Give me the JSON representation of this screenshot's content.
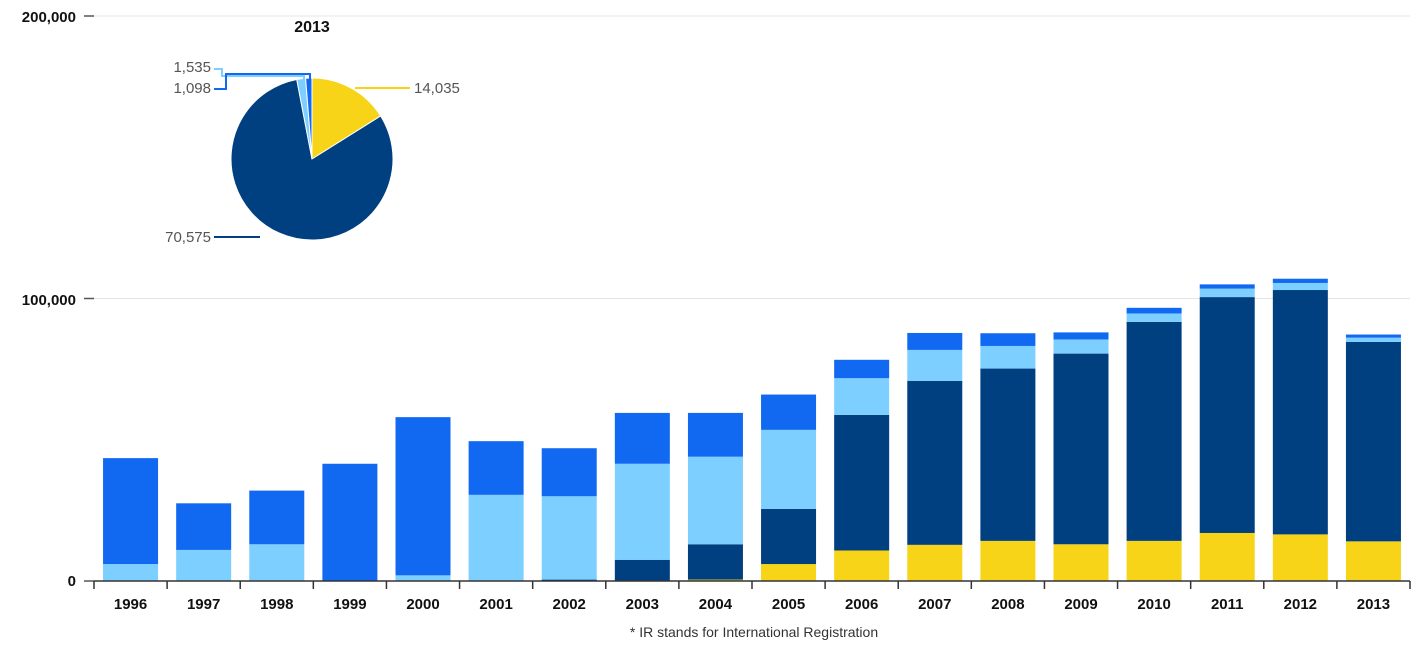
{
  "chart_data": [
    {
      "type": "bar",
      "stacked": true,
      "categories": [
        "1996",
        "1997",
        "1998",
        "1999",
        "2000",
        "2001",
        "2002",
        "2003",
        "2004",
        "2005",
        "2006",
        "2007",
        "2008",
        "2009",
        "2010",
        "2011",
        "2012",
        "2013"
      ],
      "yticks": [
        "0",
        "100,000",
        "200,000"
      ],
      "ylim": [
        0,
        200000
      ],
      "grid": true,
      "series": [
        {
          "color": "#f7d417",
          "values": [
            0,
            0,
            0,
            0,
            0,
            0,
            0,
            0,
            500,
            6000,
            10800,
            12800,
            14200,
            13000,
            14200,
            17000,
            16500,
            14035
          ]
        },
        {
          "color": "#003f80",
          "values": [
            0,
            0,
            0,
            0,
            0,
            0,
            500,
            7500,
            12500,
            19500,
            48000,
            58000,
            61000,
            67500,
            77500,
            83500,
            86500,
            70575
          ]
        },
        {
          "color": "#7ccfff",
          "values": [
            6000,
            11000,
            13000,
            0,
            2000,
            30500,
            29500,
            34000,
            31000,
            28000,
            13000,
            11000,
            8000,
            5000,
            3000,
            3000,
            2500,
            1535
          ]
        },
        {
          "color": "#1169f2",
          "values": [
            37500,
            16500,
            19000,
            41500,
            56000,
            19000,
            17000,
            18000,
            15500,
            12500,
            6500,
            6000,
            4500,
            2500,
            2000,
            1500,
            1500,
            1098
          ]
        }
      ],
      "footnote": "* IR stands for International Registration"
    },
    {
      "type": "pie",
      "title": "2013",
      "slices": [
        {
          "value": 14035,
          "label": "14,035",
          "color": "#f7d417"
        },
        {
          "value": 70575,
          "label": "70,575",
          "color": "#003f80"
        },
        {
          "value": 1535,
          "label": "1,535",
          "color": "#7ccfff"
        },
        {
          "value": 1098,
          "label": "1,098",
          "color": "#1169f2"
        }
      ]
    }
  ]
}
